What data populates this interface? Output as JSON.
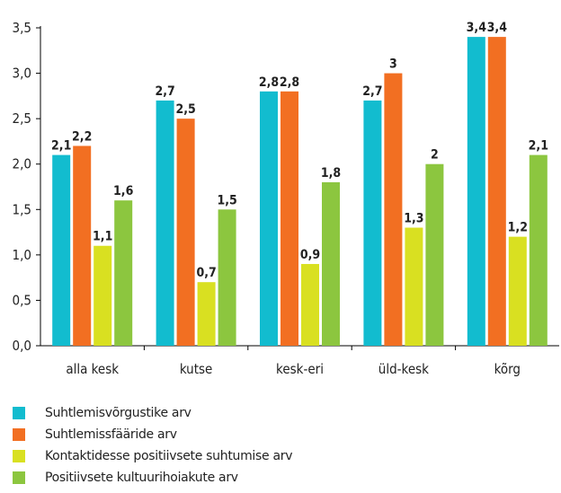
{
  "chart_data": {
    "type": "bar",
    "categories": [
      "alla kesk",
      "kutse",
      "kesk-eri",
      "üld-kesk",
      "kõrg"
    ],
    "series": [
      {
        "name": "Suhtlemisvõrgustike arv",
        "color": "#12bccf",
        "values": [
          2.1,
          2.7,
          2.8,
          2.7,
          3.4
        ],
        "labels": [
          "2,1",
          "2,7",
          "2,8",
          "2,7",
          "3,4"
        ]
      },
      {
        "name": "Suhtlemissfääride arv",
        "color": "#f26f22",
        "values": [
          2.2,
          2.5,
          2.8,
          3.0,
          3.4
        ],
        "labels": [
          "2,2",
          "2,5",
          "2,8",
          "3",
          "3,4"
        ]
      },
      {
        "name": "Kontaktidesse positiivsete suhtumise arv",
        "color": "#d9e021",
        "values": [
          1.1,
          0.7,
          0.9,
          1.3,
          1.2
        ],
        "labels": [
          "1,1",
          "0,7",
          "0,9",
          "1,3",
          "1,2"
        ]
      },
      {
        "name": "Positiivsete kultuurihoiakute arv",
        "color": "#8cc63f",
        "values": [
          1.6,
          1.5,
          1.8,
          2.0,
          2.1
        ],
        "labels": [
          "1,6",
          "1,5",
          "1,8",
          "2",
          "2,1"
        ]
      }
    ],
    "yticks": [
      0,
      0.5,
      1.0,
      1.5,
      2.0,
      2.5,
      3.0,
      3.5
    ],
    "ytick_labels": [
      "0,0",
      "0,5",
      "1,0",
      "1,5",
      "2,0",
      "2,5",
      "3,0",
      "3,5"
    ],
    "ylim": [
      0,
      3.5
    ],
    "grid": false,
    "legend_position": "bottom-left"
  }
}
